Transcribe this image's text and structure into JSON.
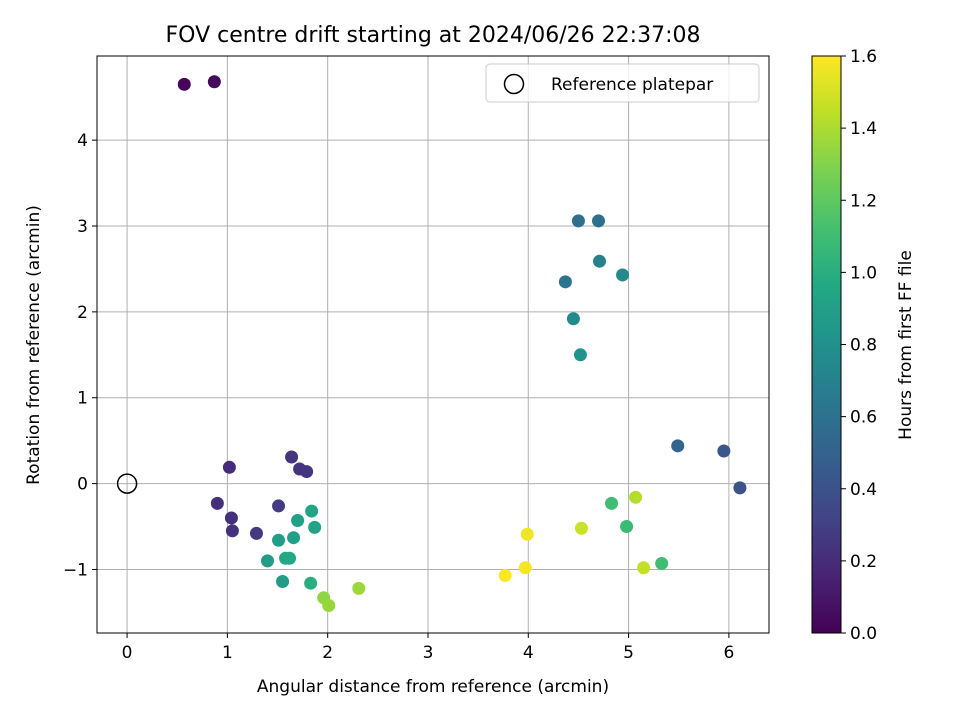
{
  "chart_data": {
    "type": "scatter",
    "title": "FOV centre drift starting at 2024/06/26 22:37:08",
    "xlabel": "Angular distance from reference (arcmin)",
    "ylabel": "Rotation from reference (arcmin)",
    "xlim": [
      -0.3,
      6.4
    ],
    "ylim": [
      -1.74,
      4.98
    ],
    "x_ticks": [
      0,
      1,
      2,
      3,
      4,
      5,
      6
    ],
    "y_ticks": [
      -1,
      0,
      1,
      2,
      3,
      4
    ],
    "grid": true,
    "legend": {
      "position": "top-right",
      "entries": [
        "Reference platepar"
      ]
    },
    "reference": {
      "x": 0,
      "y": 0,
      "label": "Reference platepar"
    },
    "colorbar": {
      "label": "Hours from first FF file",
      "colormap": "viridis",
      "range": [
        0.0,
        1.6
      ],
      "ticks": [
        "0.0",
        "0.2",
        "0.4",
        "0.6",
        "0.8",
        "1.0",
        "1.2",
        "1.4",
        "1.6"
      ]
    },
    "points": [
      {
        "x": 0.57,
        "y": 4.65,
        "t": 0.02
      },
      {
        "x": 0.87,
        "y": 4.68,
        "t": 0.03
      },
      {
        "x": 1.02,
        "y": 0.19,
        "t": 0.2
      },
      {
        "x": 0.9,
        "y": -0.23,
        "t": 0.22
      },
      {
        "x": 1.04,
        "y": -0.4,
        "t": 0.22
      },
      {
        "x": 1.05,
        "y": -0.55,
        "t": 0.23
      },
      {
        "x": 1.29,
        "y": -0.58,
        "t": 0.26
      },
      {
        "x": 1.51,
        "y": -0.26,
        "t": 0.28
      },
      {
        "x": 1.64,
        "y": 0.31,
        "t": 0.24
      },
      {
        "x": 1.72,
        "y": 0.17,
        "t": 0.24
      },
      {
        "x": 1.79,
        "y": 0.14,
        "t": 0.25
      },
      {
        "x": 6.11,
        "y": -0.05,
        "t": 0.4
      },
      {
        "x": 5.95,
        "y": 0.38,
        "t": 0.43
      },
      {
        "x": 5.49,
        "y": 0.44,
        "t": 0.52
      },
      {
        "x": 4.5,
        "y": 3.06,
        "t": 0.58
      },
      {
        "x": 4.7,
        "y": 3.06,
        "t": 0.59
      },
      {
        "x": 4.37,
        "y": 2.35,
        "t": 0.61
      },
      {
        "x": 4.71,
        "y": 2.59,
        "t": 0.7
      },
      {
        "x": 4.94,
        "y": 2.43,
        "t": 0.75
      },
      {
        "x": 4.45,
        "y": 1.92,
        "t": 0.76
      },
      {
        "x": 4.52,
        "y": 1.5,
        "t": 0.82
      },
      {
        "x": 1.4,
        "y": -0.9,
        "t": 0.88
      },
      {
        "x": 1.7,
        "y": -0.43,
        "t": 0.9
      },
      {
        "x": 1.84,
        "y": -0.32,
        "t": 0.93
      },
      {
        "x": 1.87,
        "y": -0.51,
        "t": 0.92
      },
      {
        "x": 1.66,
        "y": -0.63,
        "t": 0.9
      },
      {
        "x": 1.51,
        "y": -0.66,
        "t": 0.89
      },
      {
        "x": 1.58,
        "y": -0.87,
        "t": 0.95
      },
      {
        "x": 1.62,
        "y": -0.87,
        "t": 0.96
      },
      {
        "x": 1.55,
        "y": -1.14,
        "t": 0.88
      },
      {
        "x": 1.83,
        "y": -1.16,
        "t": 1.0
      },
      {
        "x": 4.83,
        "y": -0.23,
        "t": 1.1
      },
      {
        "x": 4.98,
        "y": -0.5,
        "t": 1.08
      },
      {
        "x": 5.33,
        "y": -0.93,
        "t": 1.1
      },
      {
        "x": 1.96,
        "y": -1.33,
        "t": 1.33
      },
      {
        "x": 2.01,
        "y": -1.42,
        "t": 1.35
      },
      {
        "x": 2.31,
        "y": -1.22,
        "t": 1.36
      },
      {
        "x": 5.07,
        "y": -0.16,
        "t": 1.42
      },
      {
        "x": 4.53,
        "y": -0.52,
        "t": 1.47
      },
      {
        "x": 5.15,
        "y": -0.98,
        "t": 1.45
      },
      {
        "x": 3.99,
        "y": -0.59,
        "t": 1.57
      },
      {
        "x": 3.97,
        "y": -0.98,
        "t": 1.58
      },
      {
        "x": 3.77,
        "y": -1.07,
        "t": 1.6
      }
    ]
  }
}
